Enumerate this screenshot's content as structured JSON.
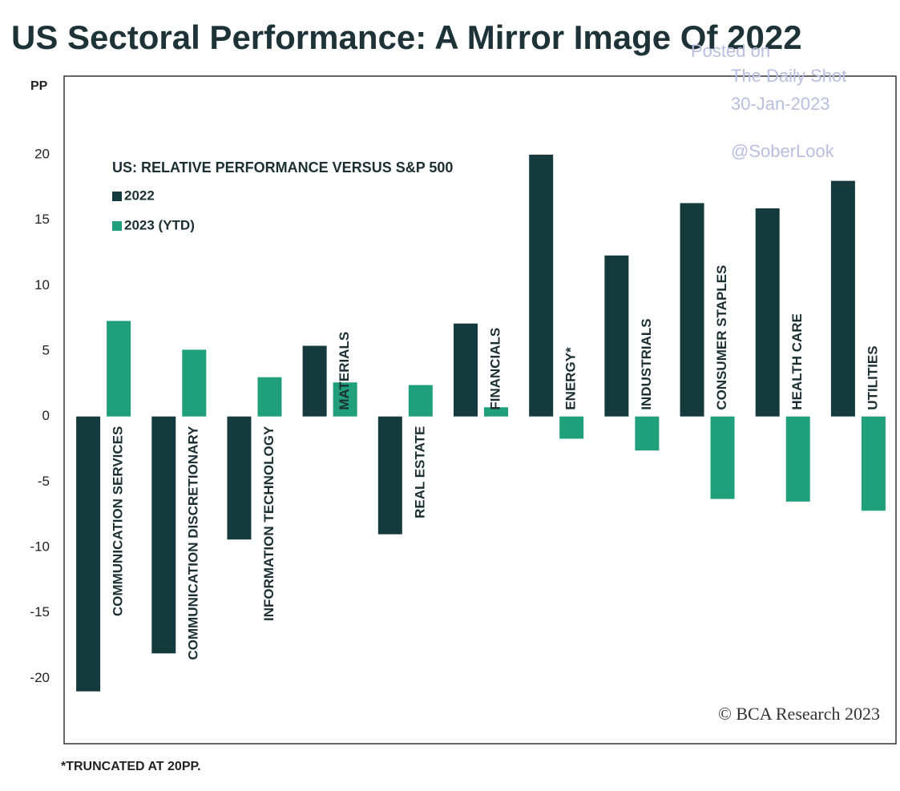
{
  "chart_data": {
    "type": "bar",
    "title": "US Sectoral Performance: A Mirror Image Of 2022",
    "y_label": "PP",
    "subtitle": "US: RELATIVE PERFORMANCE VERSUS S&P 500",
    "footnote": "*TRUNCATED AT 20PP.",
    "source": "© BCA Research 2023",
    "watermark": [
      "Posted on",
      "The Daily Shot",
      "30-Jan-2023",
      "@SoberLook"
    ],
    "categories": [
      "COMMUNICATION SERVICES",
      "COMMUNICATION DISCRETIONARY",
      "INFORMATION TECHNOLOGY",
      "MATERIALS",
      "REAL ESTATE",
      "FINANCIALS",
      "ENERGY*",
      "INDUSTRIALS",
      "CONSUMER STAPLES",
      "HEALTH CARE",
      "UTILITIES"
    ],
    "series": [
      {
        "name": "2022",
        "color": "#153a3e",
        "values": [
          -21,
          -18.1,
          -9.4,
          5.4,
          -9,
          7.1,
          20,
          12.3,
          16.3,
          15.9,
          18
        ]
      },
      {
        "name": "2023 (YTD)",
        "color": "#1fa07a",
        "values": [
          7.3,
          5.1,
          3,
          2.6,
          2.4,
          0.7,
          -1.7,
          -2.6,
          -6.3,
          -6.5,
          -7.2
        ]
      }
    ],
    "ylim": [
      -25,
      26
    ],
    "yticks": [
      20,
      15,
      10,
      5,
      0,
      -5,
      -10,
      -15,
      -20
    ],
    "grid": false
  }
}
